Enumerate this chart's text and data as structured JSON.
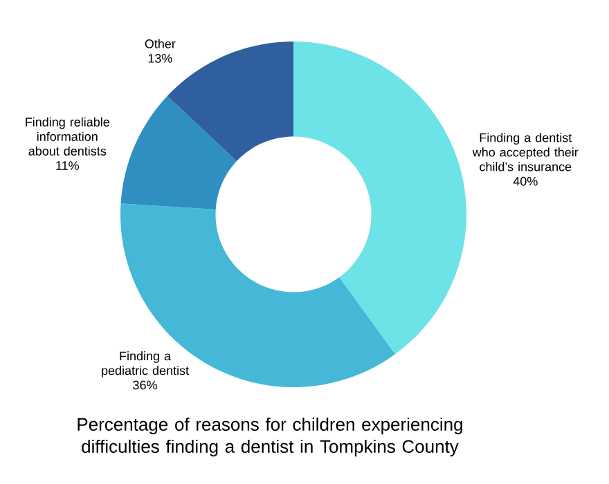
{
  "chart_data": {
    "type": "donut",
    "title": "Percentage of reasons for children experiencing difficulties finding a dentist in Tompkins County",
    "categories": [
      "Finding a dentist who accepted their child’s insurance",
      "Finding a pediatric dentist",
      "Finding reliable information about dentists",
      "Other"
    ],
    "values": [
      40,
      36,
      11,
      13
    ],
    "value_labels": [
      "40%",
      "36%",
      "11%",
      "13%"
    ],
    "colors": [
      "#6de3e8",
      "#45b8d8",
      "#2e8fc0",
      "#2f5f9e"
    ]
  }
}
